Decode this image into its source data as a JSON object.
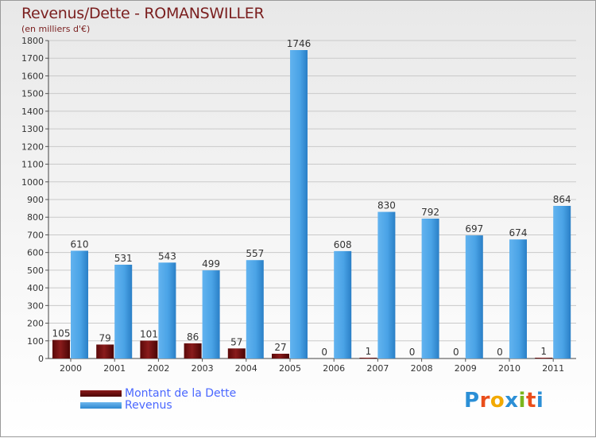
{
  "title": "Revenus/Dette - ROMANSWILLER",
  "subtitle": "(en milliers d'€)",
  "logo": {
    "text": "Proxiti",
    "letters": [
      "P",
      "r",
      "o",
      "x",
      "i",
      "t",
      "i"
    ],
    "colors": [
      "#2b8fd6",
      "#e94e1b",
      "#f2a900",
      "#2b8fd6",
      "#7ab51d",
      "#e94e1b",
      "#2b8fd6"
    ]
  },
  "legend": {
    "debt_label": "Montant de la Dette",
    "revenue_label": "Revenus"
  },
  "chart_data": {
    "type": "bar",
    "title": "Revenus/Dette - ROMANSWILLER",
    "xlabel": "",
    "ylabel": "(en milliers d'€)",
    "ylim": [
      0,
      1800
    ],
    "yticks": [
      0,
      100,
      200,
      300,
      400,
      500,
      600,
      700,
      800,
      900,
      1000,
      1100,
      1200,
      1300,
      1400,
      1500,
      1600,
      1700,
      1800
    ],
    "categories": [
      "2000",
      "2001",
      "2002",
      "2003",
      "2004",
      "2005",
      "2006",
      "2007",
      "2008",
      "2009",
      "2010",
      "2011"
    ],
    "series": [
      {
        "name": "Montant de la Dette",
        "color": "#6b0f0f",
        "values": [
          105,
          79,
          101,
          86,
          57,
          27,
          0,
          1,
          0,
          0,
          0,
          1
        ]
      },
      {
        "name": "Revenus",
        "color": "#4aa3e6",
        "values": [
          610,
          531,
          543,
          499,
          557,
          1746,
          608,
          830,
          792,
          697,
          674,
          864
        ]
      }
    ]
  }
}
